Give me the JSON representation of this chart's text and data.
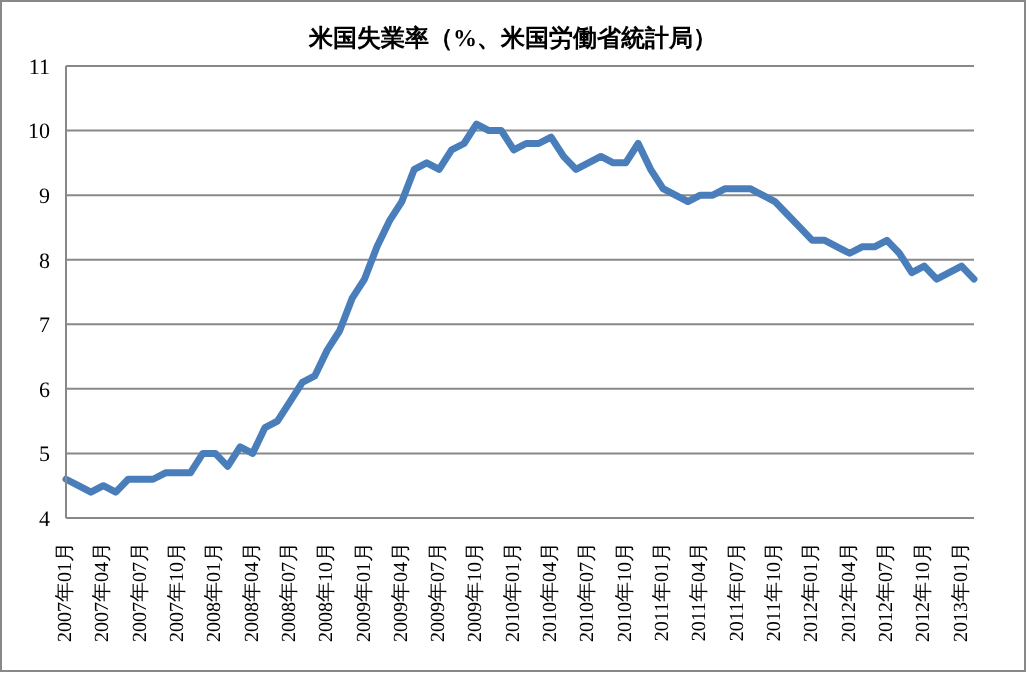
{
  "chart_data": {
    "type": "line",
    "title": "米国失業率（%、米国労働省統計局）",
    "categories": [
      "2007年01月",
      null,
      null,
      "2007年04月",
      null,
      null,
      "2007年07月",
      null,
      null,
      "2007年10月",
      null,
      null,
      "2008年01月",
      null,
      null,
      "2008年04月",
      null,
      null,
      "2008年07月",
      null,
      null,
      "2008年10月",
      null,
      null,
      "2009年01月",
      null,
      null,
      "2009年04月",
      null,
      null,
      "2009年07月",
      null,
      null,
      "2009年10月",
      null,
      null,
      "2010年01月",
      null,
      null,
      "2010年04月",
      null,
      null,
      "2010年07月",
      null,
      null,
      "2010年10月",
      null,
      null,
      "2011年01月",
      null,
      null,
      "2011年04月",
      null,
      null,
      "2011年07月",
      null,
      null,
      "2011年10月",
      null,
      null,
      "2012年01月",
      null,
      null,
      "2012年04月",
      null,
      null,
      "2012年07月",
      null,
      null,
      "2012年10月",
      null,
      null,
      "2013年01月",
      null
    ],
    "series": [
      {
        "color": "#4a7ebb",
        "values": [
          4.6,
          4.5,
          4.4,
          4.5,
          4.4,
          4.6,
          4.6,
          4.6,
          4.7,
          4.7,
          4.7,
          5.0,
          5.0,
          4.8,
          5.1,
          5.0,
          5.4,
          5.5,
          5.8,
          6.1,
          6.2,
          6.6,
          6.9,
          7.4,
          7.7,
          8.2,
          8.6,
          8.9,
          9.4,
          9.5,
          9.4,
          9.7,
          9.8,
          10.1,
          10.0,
          10.0,
          9.7,
          9.8,
          9.8,
          9.9,
          9.6,
          9.4,
          9.5,
          9.6,
          9.5,
          9.5,
          9.8,
          9.4,
          9.1,
          9.0,
          8.9,
          9.0,
          9.0,
          9.1,
          9.1,
          9.1,
          9.0,
          8.9,
          8.7,
          8.5,
          8.3,
          8.3,
          8.2,
          8.1,
          8.2,
          8.2,
          8.3,
          8.1,
          7.8,
          7.9,
          7.7,
          7.8,
          7.9,
          7.7
        ]
      }
    ],
    "ylim": [
      4,
      11
    ],
    "yticks": [
      4,
      5,
      6,
      7,
      8,
      9,
      10,
      11
    ],
    "grid": "y",
    "legend": false,
    "marker": "none",
    "line_style": "solid"
  }
}
